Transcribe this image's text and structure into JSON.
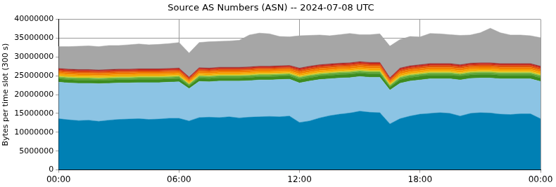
{
  "chart_data": {
    "type": "area",
    "title": "Source AS Numbers (ASN) -- 2024-07-08 UTC",
    "y_label": "Bytes per time slot (300 s)",
    "stacked": true,
    "grid": true,
    "xlim": [
      0,
      24
    ],
    "xticks": [
      {
        "value": 0,
        "label": "00:00"
      },
      {
        "value": 6,
        "label": "06:00"
      },
      {
        "value": 12,
        "label": "12:00"
      },
      {
        "value": 18,
        "label": "18:00"
      },
      {
        "value": 24,
        "label": "00:00"
      }
    ],
    "ylim": [
      0,
      40000000
    ],
    "yticks": [
      0,
      5000000,
      10000000,
      15000000,
      20000000,
      25000000,
      30000000,
      35000000,
      40000000
    ],
    "x": [
      0,
      0.5,
      1,
      1.5,
      2,
      2.5,
      3,
      3.5,
      4,
      4.5,
      5,
      5.5,
      6,
      6.5,
      7,
      7.5,
      8,
      8.5,
      9,
      9.5,
      10,
      10.5,
      11,
      11.5,
      12,
      12.5,
      13,
      13.5,
      14,
      14.5,
      15,
      15.5,
      16,
      16.5,
      17,
      17.5,
      18,
      18.5,
      19,
      19.5,
      20,
      20.5,
      21,
      21.5,
      22,
      22.5,
      23,
      23.5,
      24
    ],
    "series": [
      {
        "color": "#0080b4",
        "values": [
          13600000,
          13300000,
          13100000,
          13200000,
          12900000,
          13200000,
          13400000,
          13500000,
          13600000,
          13400000,
          13500000,
          13700000,
          13700000,
          13000000,
          13900000,
          14000000,
          13900000,
          14100000,
          13800000,
          14000000,
          14100000,
          14200000,
          14100000,
          14300000,
          12600000,
          13000000,
          13800000,
          14400000,
          14800000,
          15100000,
          15600000,
          15300000,
          15200000,
          12200000,
          13600000,
          14300000,
          14800000,
          15000000,
          15200000,
          15000000,
          14300000,
          15000000,
          15200000,
          15100000,
          14800000,
          14700000,
          14900000,
          14900000,
          13600000
        ]
      },
      {
        "color": "#8cc4e4",
        "values": [
          9700000,
          9800000,
          9900000,
          9800000,
          10000000,
          9800000,
          9700000,
          9600000,
          9600000,
          9800000,
          9700000,
          9600000,
          9700000,
          8600000,
          9600000,
          9400000,
          9700000,
          9500000,
          9800000,
          9700000,
          9800000,
          9700000,
          9900000,
          9800000,
          10500000,
          10600000,
          10200000,
          9800000,
          9600000,
          9400000,
          9200000,
          9300000,
          9400000,
          9000000,
          9400000,
          9300000,
          9100000,
          9200000,
          9000000,
          9200000,
          9600000,
          9300000,
          9200000,
          9300000,
          9400000,
          9500000,
          9300000,
          9300000,
          9900000
        ]
      },
      {
        "color": "#3d8c1e",
        "values": [
          850000,
          850000,
          850000,
          850000,
          850000,
          850000,
          850000,
          850000,
          850000,
          850000,
          850000,
          850000,
          850000,
          700000,
          850000,
          850000,
          850000,
          850000,
          850000,
          850000,
          850000,
          850000,
          850000,
          850000,
          900000,
          900000,
          900000,
          900000,
          900000,
          900000,
          900000,
          900000,
          900000,
          750000,
          950000,
          950000,
          950000,
          950000,
          950000,
          950000,
          950000,
          950000,
          950000,
          950000,
          950000,
          950000,
          950000,
          950000,
          950000
        ]
      },
      {
        "color": "#5fa83a",
        "values": [
          450000,
          450000,
          450000,
          450000,
          450000,
          450000,
          450000,
          450000,
          450000,
          450000,
          450000,
          450000,
          450000,
          380000,
          450000,
          450000,
          450000,
          450000,
          450000,
          450000,
          450000,
          450000,
          450000,
          450000,
          480000,
          480000,
          480000,
          480000,
          480000,
          480000,
          480000,
          480000,
          480000,
          400000,
          500000,
          500000,
          500000,
          500000,
          500000,
          500000,
          500000,
          500000,
          500000,
          500000,
          500000,
          500000,
          500000,
          500000,
          500000
        ]
      },
      {
        "color": "#9bc83c",
        "values": [
          200000,
          200000,
          200000,
          200000,
          200000,
          200000,
          200000,
          200000,
          200000,
          200000,
          200000,
          200000,
          200000,
          150000,
          200000,
          200000,
          200000,
          200000,
          200000,
          200000,
          200000,
          200000,
          200000,
          200000,
          220000,
          220000,
          220000,
          220000,
          220000,
          220000,
          220000,
          220000,
          220000,
          180000,
          220000,
          220000,
          220000,
          220000,
          220000,
          220000,
          220000,
          220000,
          220000,
          220000,
          220000,
          220000,
          220000,
          220000,
          220000
        ]
      },
      {
        "color": "#e8c21a",
        "values": [
          300000,
          300000,
          300000,
          300000,
          300000,
          300000,
          300000,
          300000,
          300000,
          300000,
          300000,
          300000,
          300000,
          250000,
          300000,
          300000,
          300000,
          300000,
          300000,
          300000,
          300000,
          300000,
          300000,
          300000,
          320000,
          320000,
          320000,
          320000,
          320000,
          320000,
          320000,
          320000,
          320000,
          260000,
          330000,
          330000,
          330000,
          330000,
          330000,
          330000,
          330000,
          330000,
          330000,
          330000,
          330000,
          330000,
          330000,
          330000,
          330000
        ]
      },
      {
        "color": "#f5a300",
        "values": [
          450000,
          450000,
          450000,
          450000,
          450000,
          450000,
          450000,
          450000,
          450000,
          450000,
          450000,
          450000,
          450000,
          380000,
          450000,
          450000,
          450000,
          450000,
          450000,
          450000,
          450000,
          450000,
          450000,
          450000,
          480000,
          480000,
          480000,
          480000,
          480000,
          480000,
          480000,
          480000,
          480000,
          400000,
          500000,
          500000,
          500000,
          500000,
          500000,
          500000,
          500000,
          500000,
          500000,
          500000,
          500000,
          500000,
          500000,
          500000,
          500000
        ]
      },
      {
        "color": "#f07c00",
        "values": [
          500000,
          500000,
          500000,
          500000,
          500000,
          500000,
          500000,
          500000,
          500000,
          500000,
          500000,
          500000,
          500000,
          420000,
          500000,
          500000,
          500000,
          500000,
          500000,
          500000,
          500000,
          500000,
          500000,
          500000,
          550000,
          550000,
          550000,
          550000,
          550000,
          550000,
          550000,
          550000,
          550000,
          450000,
          550000,
          550000,
          550000,
          550000,
          550000,
          550000,
          550000,
          550000,
          550000,
          550000,
          550000,
          550000,
          550000,
          550000,
          550000
        ]
      },
      {
        "color": "#e0520a",
        "values": [
          400000,
          400000,
          400000,
          400000,
          400000,
          400000,
          400000,
          400000,
          400000,
          400000,
          400000,
          400000,
          400000,
          350000,
          400000,
          400000,
          400000,
          400000,
          400000,
          400000,
          400000,
          400000,
          400000,
          400000,
          450000,
          450000,
          450000,
          450000,
          450000,
          450000,
          450000,
          450000,
          450000,
          380000,
          450000,
          450000,
          450000,
          450000,
          450000,
          450000,
          450000,
          450000,
          450000,
          450000,
          450000,
          450000,
          450000,
          450000,
          450000
        ]
      },
      {
        "color": "#c8281e",
        "values": [
          350000,
          350000,
          350000,
          350000,
          350000,
          350000,
          350000,
          350000,
          350000,
          350000,
          350000,
          350000,
          350000,
          300000,
          350000,
          350000,
          350000,
          350000,
          350000,
          350000,
          350000,
          350000,
          350000,
          350000,
          380000,
          380000,
          380000,
          380000,
          380000,
          380000,
          380000,
          380000,
          380000,
          320000,
          380000,
          380000,
          380000,
          380000,
          380000,
          380000,
          380000,
          380000,
          380000,
          380000,
          380000,
          380000,
          380000,
          380000,
          380000
        ]
      },
      {
        "color": "#8c1e1e",
        "values": [
          150000,
          150000,
          150000,
          150000,
          150000,
          150000,
          150000,
          150000,
          150000,
          150000,
          150000,
          150000,
          150000,
          120000,
          150000,
          150000,
          150000,
          150000,
          150000,
          150000,
          150000,
          150000,
          150000,
          150000,
          160000,
          160000,
          160000,
          160000,
          160000,
          160000,
          160000,
          160000,
          160000,
          140000,
          160000,
          160000,
          160000,
          160000,
          160000,
          160000,
          160000,
          160000,
          160000,
          160000,
          160000,
          160000,
          160000,
          160000,
          160000
        ]
      },
      {
        "color": "#a6a6a6",
        "values": [
          5800000,
          6000000,
          6200000,
          6300000,
          6200000,
          6400000,
          6300000,
          6500000,
          6600000,
          6400000,
          6500000,
          6600000,
          6800000,
          6400000,
          6700000,
          7000000,
          6900000,
          7000000,
          7200000,
          8500000,
          8800000,
          8600000,
          7800000,
          7600000,
          8600000,
          8200000,
          7900000,
          7500000,
          7600000,
          7800000,
          7200000,
          7400000,
          7600000,
          8400000,
          7600000,
          7800000,
          7400000,
          8000000,
          7900000,
          7700000,
          7800000,
          7500000,
          8000000,
          9200000,
          8200000,
          7600000,
          7600000,
          7400000,
          7600000
        ]
      }
    ]
  }
}
